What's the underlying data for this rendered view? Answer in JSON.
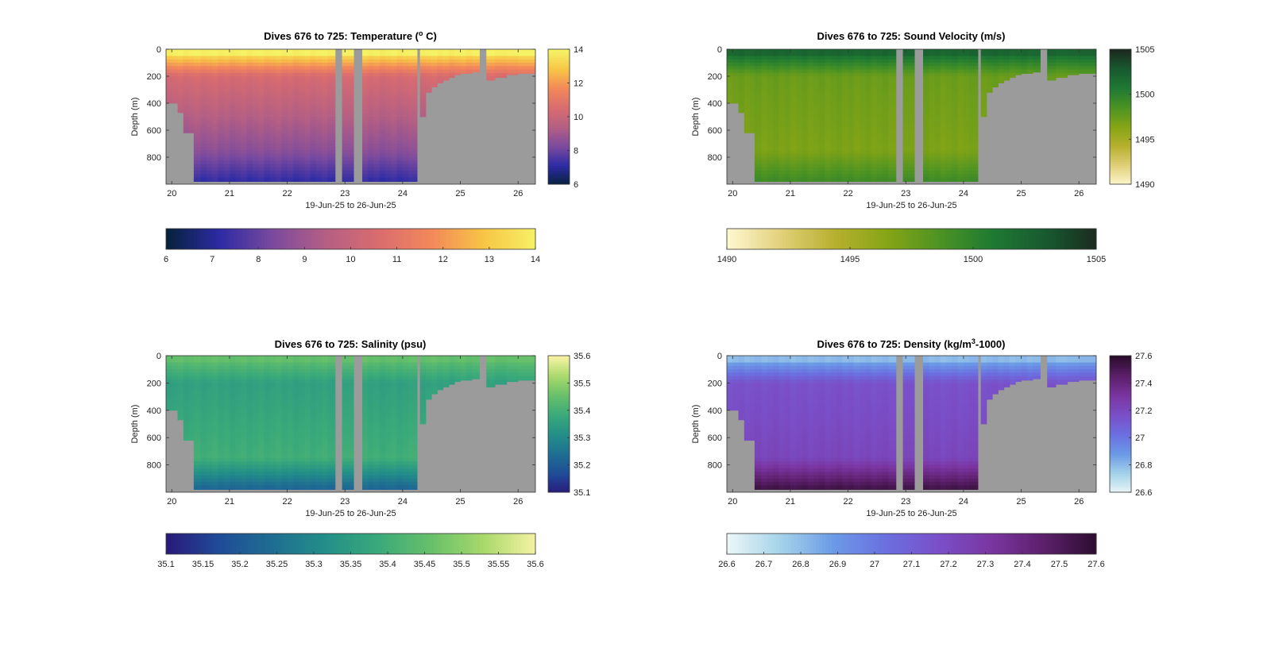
{
  "chart_data": [
    {
      "type": "heatmap",
      "title_prefix": "Dives 676 to 725: Temperature (",
      "title_sup": "o",
      "title_suffix": " C)",
      "xlabel": "19-Jun-25 to 26-Jun-25",
      "ylabel": "Depth (m)",
      "x_ticks": [
        "20",
        "21",
        "22",
        "23",
        "24",
        "25",
        "26"
      ],
      "x_tick_values": [
        20,
        21,
        22,
        23,
        24,
        25,
        26
      ],
      "xlim": [
        19.9,
        26.3
      ],
      "y_ticks": [
        "0",
        "200",
        "400",
        "600",
        "800"
      ],
      "y_tick_values": [
        0,
        200,
        400,
        600,
        800
      ],
      "ylim": [
        0,
        1000
      ],
      "colorbar_right_ticks": [
        "6",
        "8",
        "10",
        "12",
        "14"
      ],
      "colorbar_right_values": [
        6,
        8,
        10,
        12,
        14
      ],
      "colorbar_bottom_ticks": [
        "6",
        "7",
        "8",
        "9",
        "10",
        "11",
        "12",
        "13",
        "14"
      ],
      "colorbar_bottom_values": [
        6,
        7,
        8,
        9,
        10,
        11,
        12,
        13,
        14
      ],
      "clim": [
        6,
        14
      ],
      "surface_value": 13.5,
      "deep_value": 8.6,
      "bottom_value": 7.2,
      "mid_value": 10.5,
      "colormap": [
        "#06223d",
        "#2d2ba4",
        "#7b4a9e",
        "#b45f84",
        "#d96c6f",
        "#f3885a",
        "#f8c546",
        "#f5f266"
      ],
      "gap_color": "#9b9b9b"
    },
    {
      "type": "heatmap",
      "title_prefix": "Dives 676 to 725: Sound Velocity (m/s)",
      "title_sup": "",
      "title_suffix": "",
      "xlabel": "19-Jun-25 to 26-Jun-25",
      "ylabel": "Depth (m)",
      "x_ticks": [
        "20",
        "21",
        "22",
        "23",
        "24",
        "25",
        "26"
      ],
      "x_tick_values": [
        20,
        21,
        22,
        23,
        24,
        25,
        26
      ],
      "xlim": [
        19.9,
        26.3
      ],
      "y_ticks": [
        "0",
        "200",
        "400",
        "600",
        "800"
      ],
      "y_tick_values": [
        0,
        200,
        400,
        600,
        800
      ],
      "ylim": [
        0,
        1000
      ],
      "colorbar_right_ticks": [
        "1505",
        "1500",
        "1495",
        "1490"
      ],
      "colorbar_right_values": [
        1505,
        1500,
        1495,
        1490
      ],
      "colorbar_bottom_ticks": [
        "1490",
        "1495",
        "1500",
        "1505"
      ],
      "colorbar_bottom_values": [
        1490,
        1495,
        1500,
        1505
      ],
      "clim": [
        1490,
        1505
      ],
      "surface_value": 1501.5,
      "deep_value": 1496.8,
      "bottom_value": 1499.3,
      "mid_value": 1497.5,
      "colormap": [
        "#fdf7cf",
        "#e2d07a",
        "#b7b02f",
        "#87a515",
        "#4d9323",
        "#1f7a32",
        "#185a30",
        "#1b2a1e"
      ],
      "gap_color": "#9b9b9b"
    },
    {
      "type": "heatmap",
      "title_prefix": "Dives 676 to 725: Salinity (psu)",
      "title_sup": "",
      "title_suffix": "",
      "xlabel": "19-Jun-25 to 26-Jun-25",
      "ylabel": "Depth (m)",
      "x_ticks": [
        "20",
        "21",
        "22",
        "23",
        "24",
        "25",
        "26"
      ],
      "x_tick_values": [
        20,
        21,
        22,
        23,
        24,
        25,
        26
      ],
      "xlim": [
        19.9,
        26.3
      ],
      "y_ticks": [
        "0",
        "200",
        "400",
        "600",
        "800"
      ],
      "y_tick_values": [
        0,
        200,
        400,
        600,
        800
      ],
      "ylim": [
        0,
        1000
      ],
      "colorbar_right_ticks": [
        "35.6",
        "35.5",
        "35.4",
        "35.3",
        "35.2",
        "35.1"
      ],
      "colorbar_right_values": [
        35.6,
        35.5,
        35.4,
        35.3,
        35.2,
        35.1
      ],
      "colorbar_bottom_ticks": [
        "35.1",
        "35.15",
        "35.2",
        "35.25",
        "35.3",
        "35.35",
        "35.4",
        "35.45",
        "35.5",
        "35.55",
        "35.6"
      ],
      "colorbar_bottom_values": [
        35.1,
        35.15,
        35.2,
        35.25,
        35.3,
        35.35,
        35.4,
        35.45,
        35.5,
        35.55,
        35.6
      ],
      "clim": [
        35.1,
        35.6
      ],
      "surface_value": 35.44,
      "deep_value": 35.4,
      "bottom_value": 35.22,
      "mid_value": 35.36,
      "colormap": [
        "#2a1a7a",
        "#1f4c98",
        "#1f6e92",
        "#238f88",
        "#3aa97a",
        "#67c06a",
        "#a9d96c",
        "#f7f3a3"
      ],
      "gap_color": "#9b9b9b"
    },
    {
      "type": "heatmap",
      "title_prefix": "Dives 676 to 725: Density (kg/m",
      "title_sup": "3",
      "title_suffix": "-1000)",
      "xlabel": "19-Jun-25 to 26-Jun-25",
      "ylabel": "Depth (m)",
      "x_ticks": [
        "20",
        "21",
        "22",
        "23",
        "24",
        "25",
        "26"
      ],
      "x_tick_values": [
        20,
        21,
        22,
        23,
        24,
        25,
        26
      ],
      "xlim": [
        19.9,
        26.3
      ],
      "y_ticks": [
        "0",
        "200",
        "400",
        "600",
        "800"
      ],
      "y_tick_values": [
        0,
        200,
        400,
        600,
        800
      ],
      "ylim": [
        0,
        1000
      ],
      "colorbar_right_ticks": [
        "27.6",
        "27.4",
        "27.2",
        "27",
        "26.8",
        "26.6"
      ],
      "colorbar_right_values": [
        27.6,
        27.4,
        27.2,
        27.0,
        26.8,
        26.6
      ],
      "colorbar_bottom_ticks": [
        "26.6",
        "26.7",
        "26.8",
        "26.9",
        "27",
        "27.1",
        "27.2",
        "27.3",
        "27.4",
        "27.5",
        "27.6"
      ],
      "colorbar_bottom_values": [
        26.6,
        26.7,
        26.8,
        26.9,
        27.0,
        27.1,
        27.2,
        27.3,
        27.4,
        27.5,
        27.6
      ],
      "clim": [
        26.6,
        27.6
      ],
      "surface_value": 26.85,
      "deep_value": 27.22,
      "bottom_value": 27.55,
      "mid_value": 27.16,
      "colormap": [
        "#eaf6f6",
        "#a4d2ea",
        "#6b9ae6",
        "#6b6fe0",
        "#7a4fc8",
        "#7a35a0",
        "#5b1f6a",
        "#2c0c2d"
      ],
      "gap_color": "#9b9b9b"
    }
  ],
  "dives": {
    "start_day": [
      19.9,
      20.0,
      20.1,
      20.2,
      20.3,
      20.38,
      20.5,
      20.6,
      20.7,
      20.8,
      20.9,
      21.0,
      21.1,
      21.2,
      21.3,
      21.4,
      21.5,
      21.6,
      21.7,
      21.8,
      21.9,
      22.0,
      22.1,
      22.2,
      22.3,
      22.4,
      22.5,
      22.6,
      22.7,
      22.95,
      23.3,
      23.4,
      23.5,
      23.6,
      23.7,
      23.8,
      23.9,
      24.0,
      24.1,
      24.3,
      24.4,
      24.5,
      24.6,
      24.7,
      24.8,
      24.9,
      25.0,
      25.1,
      25.2,
      25.45,
      25.6,
      25.8,
      26.0
    ],
    "end_day": [
      20.0,
      20.1,
      20.2,
      20.3,
      20.38,
      20.5,
      20.6,
      20.7,
      20.8,
      20.9,
      21.0,
      21.1,
      21.2,
      21.3,
      21.4,
      21.5,
      21.6,
      21.7,
      21.8,
      21.9,
      22.0,
      22.1,
      22.2,
      22.3,
      22.4,
      22.5,
      22.6,
      22.7,
      22.83,
      23.15,
      23.4,
      23.5,
      23.6,
      23.7,
      23.8,
      23.9,
      24.0,
      24.1,
      24.25,
      24.4,
      24.5,
      24.6,
      24.7,
      24.8,
      24.9,
      25.0,
      25.1,
      25.2,
      25.33,
      25.6,
      25.8,
      26.0,
      26.3
    ],
    "max_depth": [
      400,
      400,
      470,
      620,
      620,
      980,
      980,
      980,
      980,
      980,
      980,
      980,
      980,
      980,
      980,
      980,
      980,
      980,
      980,
      980,
      980,
      980,
      980,
      980,
      980,
      980,
      980,
      980,
      980,
      980,
      980,
      980,
      980,
      980,
      980,
      980,
      980,
      980,
      980,
      500,
      320,
      280,
      250,
      230,
      210,
      190,
      180,
      180,
      170,
      230,
      210,
      190,
      180
    ]
  }
}
